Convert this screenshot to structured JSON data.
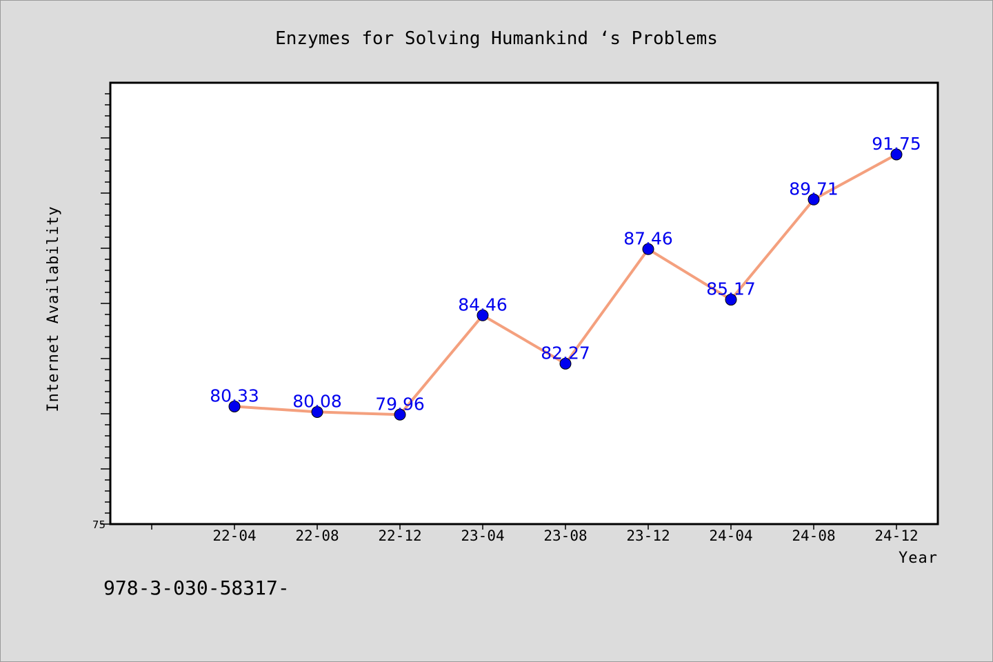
{
  "chart_data": {
    "type": "line",
    "title": "Enzymes for Solving Humankind ‘s Problems",
    "xlabel": "Year",
    "ylabel": "Internet Availability",
    "categories": [
      "22-04",
      "22-08",
      "22-12",
      "23-04",
      "23-08",
      "23-12",
      "24-04",
      "24-08",
      "24-12"
    ],
    "series": [
      {
        "values": [
          80.33,
          80.08,
          79.96,
          84.46,
          82.27,
          87.46,
          85.17,
          89.71,
          91.75
        ]
      }
    ],
    "ylim": [
      75,
      95
    ],
    "y_tick_labels": [
      "75"
    ],
    "grid": false,
    "legend": "none",
    "colors": {
      "line": "#f4a07e",
      "marker": "#0000ee",
      "data_label": "#0000ee",
      "plot_background": "#ffffff",
      "page_background": "#dcdcdc"
    }
  },
  "footer": {
    "text": "978-3-030-58317-"
  }
}
